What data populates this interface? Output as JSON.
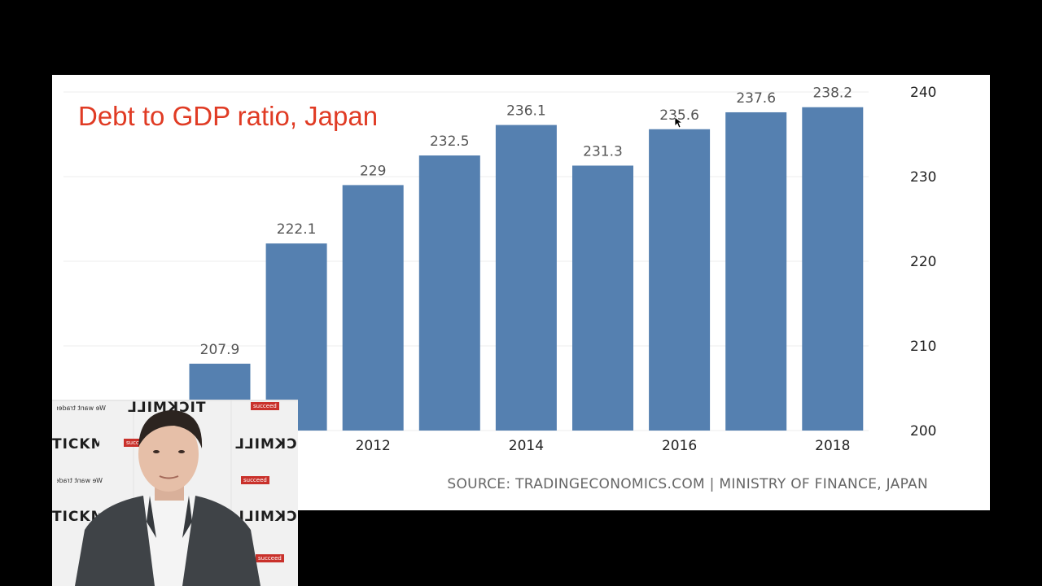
{
  "slide": {
    "title": "Debt to GDP ratio, Japan",
    "source": "SOURCE: TRADINGECONOMICS.COM | MINISTRY OF FINANCE, JAPAN"
  },
  "chart_data": {
    "type": "bar",
    "title": "Debt to GDP ratio, Japan",
    "categories": [
      "2010",
      "2011",
      "2012",
      "2013",
      "2014",
      "2015",
      "2016",
      "2017",
      "2018"
    ],
    "values": [
      207.9,
      222.1,
      229,
      232.5,
      236.1,
      231.3,
      235.6,
      237.6,
      238.2
    ],
    "value_labels": [
      "207.9",
      "222.1",
      "229",
      "232.5",
      "236.1",
      "231.3",
      "235.6",
      "237.6",
      "238.2"
    ],
    "x_tick_labels": [
      "2012",
      "2014",
      "2016",
      "2018"
    ],
    "x_tick_categories": [
      "2012",
      "2014",
      "2016",
      "2018"
    ],
    "y_ticks": [
      200,
      210,
      220,
      230,
      240
    ],
    "ylim": [
      200,
      240
    ],
    "y_axis_side": "right",
    "grid": true,
    "bar_color": "#5580b0",
    "xlabel": "",
    "ylabel": ""
  },
  "webcam": {
    "logo_text": "TICKMILL",
    "tagline": "We want traders to succeed",
    "tag_red": "succeed"
  }
}
